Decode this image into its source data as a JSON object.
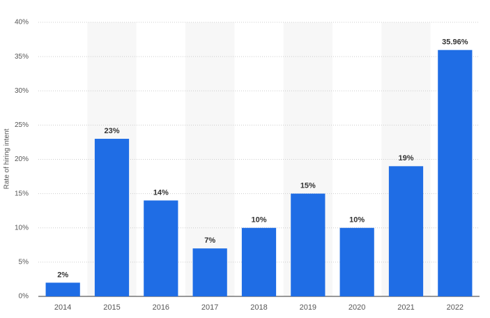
{
  "chart_data": {
    "type": "bar",
    "y_axis_label": "Rate of hiring intent",
    "categories": [
      "2014",
      "2015",
      "2016",
      "2017",
      "2018",
      "2019",
      "2020",
      "2021",
      "2022"
    ],
    "values": [
      2,
      23,
      14,
      7,
      10,
      15,
      10,
      19,
      35.96
    ],
    "value_labels": [
      "2%",
      "23%",
      "14%",
      "7%",
      "10%",
      "15%",
      "10%",
      "19%",
      "35.96%"
    ],
    "color": "#1f6de5",
    "ylim": [
      0,
      40
    ],
    "yticks": [
      {
        "value": 0,
        "label": "0%"
      },
      {
        "value": 5,
        "label": "5%"
      },
      {
        "value": 10,
        "label": "10%"
      },
      {
        "value": 15,
        "label": "15%"
      },
      {
        "value": 20,
        "label": "20%"
      },
      {
        "value": 25,
        "label": "25%"
      },
      {
        "value": 30,
        "label": "30%"
      },
      {
        "value": 35,
        "label": "35%"
      },
      {
        "value": 40,
        "label": "40%"
      }
    ],
    "grid": true
  }
}
